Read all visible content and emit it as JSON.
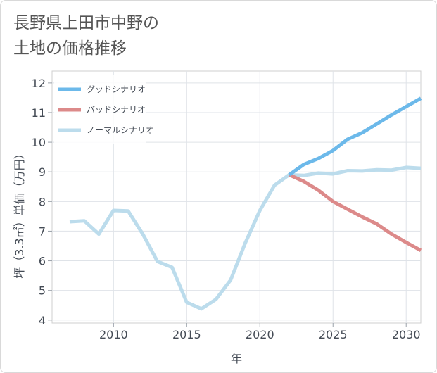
{
  "page": {
    "title_line1": "長野県上田市中野の",
    "title_line2": "土地の価格推移"
  },
  "chart_data": {
    "type": "line",
    "title": "長野県上田市中野の土地の価格推移",
    "xlabel": "年",
    "ylabel": "坪（3.3㎡）単価（万円）",
    "xlim": [
      2005.8,
      2031
    ],
    "ylim": [
      3.9,
      12.4
    ],
    "x_ticks": [
      2010,
      2015,
      2020,
      2025,
      2030
    ],
    "y_ticks": [
      4,
      5,
      6,
      7,
      8,
      9,
      10,
      11,
      12
    ],
    "grid": true,
    "legend_position": "top-left",
    "series": [
      {
        "name": "グッドシナリオ",
        "color": "#6cb9ea",
        "x": [
          2022,
          2023,
          2024,
          2025,
          2026,
          2027,
          2028,
          2029,
          2030,
          2031
        ],
        "values": [
          8.9,
          9.25,
          9.45,
          9.72,
          10.1,
          10.32,
          10.62,
          10.92,
          11.2,
          11.48
        ]
      },
      {
        "name": "バッドシナリオ",
        "color": "#dc8a8a",
        "x": [
          2022,
          2023,
          2024,
          2025,
          2026,
          2027,
          2028,
          2029,
          2030,
          2031
        ],
        "values": [
          8.9,
          8.68,
          8.38,
          8.0,
          7.74,
          7.48,
          7.24,
          6.9,
          6.62,
          6.35
        ]
      },
      {
        "name": "ノーマルシナリオ",
        "color": "#bcdcec",
        "x": [
          2007,
          2008,
          2009,
          2010,
          2011,
          2012,
          2013,
          2014,
          2015,
          2016,
          2017,
          2018,
          2019,
          2020,
          2021,
          2022,
          2023,
          2024,
          2025,
          2026,
          2027,
          2028,
          2029,
          2030,
          2031
        ],
        "values": [
          7.32,
          7.35,
          6.9,
          7.7,
          7.68,
          6.9,
          5.98,
          5.78,
          4.6,
          4.38,
          4.7,
          5.35,
          6.6,
          7.7,
          8.55,
          8.9,
          8.88,
          8.96,
          8.93,
          9.04,
          9.03,
          9.07,
          9.06,
          9.15,
          9.12
        ]
      }
    ]
  }
}
